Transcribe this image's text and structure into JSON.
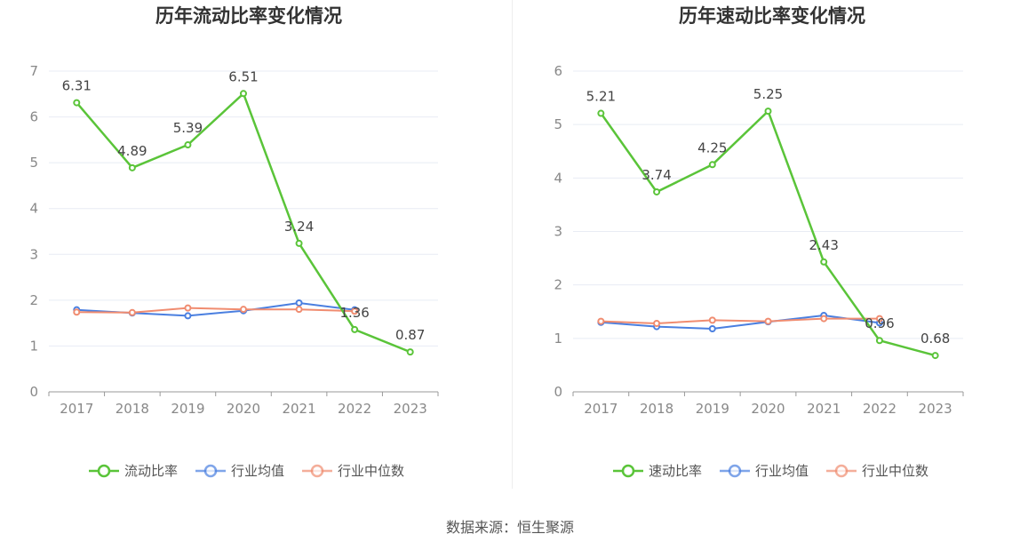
{
  "source_text": "数据来源：恒生聚源",
  "colors": {
    "main": "#5ac439",
    "avg": "#4a7fe0",
    "median": "#f08c70",
    "grid": "#e8ecf4",
    "axis": "#999999"
  },
  "chart_data": [
    {
      "type": "line",
      "title": "历年流动比率变化情况",
      "x": [
        "2017",
        "2018",
        "2019",
        "2020",
        "2021",
        "2022",
        "2023"
      ],
      "y_ticks": [
        "0",
        "1",
        "2",
        "3",
        "4",
        "5",
        "6",
        "7"
      ],
      "ylim": [
        0,
        7
      ],
      "grid": true,
      "legend_position": "bottom",
      "series": [
        {
          "name": "流动比率",
          "color": "#5ac439",
          "values": [
            6.31,
            4.89,
            5.39,
            6.51,
            3.24,
            1.36,
            0.87
          ],
          "labels": [
            "6.31",
            "4.89",
            "5.39",
            "6.51",
            "3.24",
            "1.36",
            "0.87"
          ]
        },
        {
          "name": "行业均值",
          "color": "#4a7fe0",
          "values": [
            1.79,
            1.72,
            1.66,
            1.77,
            1.94,
            1.79,
            null
          ]
        },
        {
          "name": "行业中位数",
          "color": "#f08c70",
          "values": [
            1.74,
            1.73,
            1.83,
            1.8,
            1.8,
            1.76,
            null
          ]
        }
      ]
    },
    {
      "type": "line",
      "title": "历年速动比率变化情况",
      "x": [
        "2017",
        "2018",
        "2019",
        "2020",
        "2021",
        "2022",
        "2023"
      ],
      "y_ticks": [
        "0",
        "1",
        "2",
        "3",
        "4",
        "5",
        "6"
      ],
      "ylim": [
        0,
        6
      ],
      "grid": true,
      "legend_position": "bottom",
      "series": [
        {
          "name": "速动比率",
          "color": "#5ac439",
          "values": [
            5.21,
            3.74,
            4.25,
            5.25,
            2.43,
            0.96,
            0.68
          ],
          "labels": [
            "5.21",
            "3.74",
            "4.25",
            "5.25",
            "2.43",
            "0.96",
            "0.68"
          ]
        },
        {
          "name": "行业均值",
          "color": "#4a7fe0",
          "values": [
            1.3,
            1.22,
            1.18,
            1.31,
            1.43,
            1.29,
            null
          ]
        },
        {
          "name": "行业中位数",
          "color": "#f08c70",
          "values": [
            1.32,
            1.28,
            1.34,
            1.32,
            1.37,
            1.37,
            null
          ]
        }
      ]
    }
  ]
}
